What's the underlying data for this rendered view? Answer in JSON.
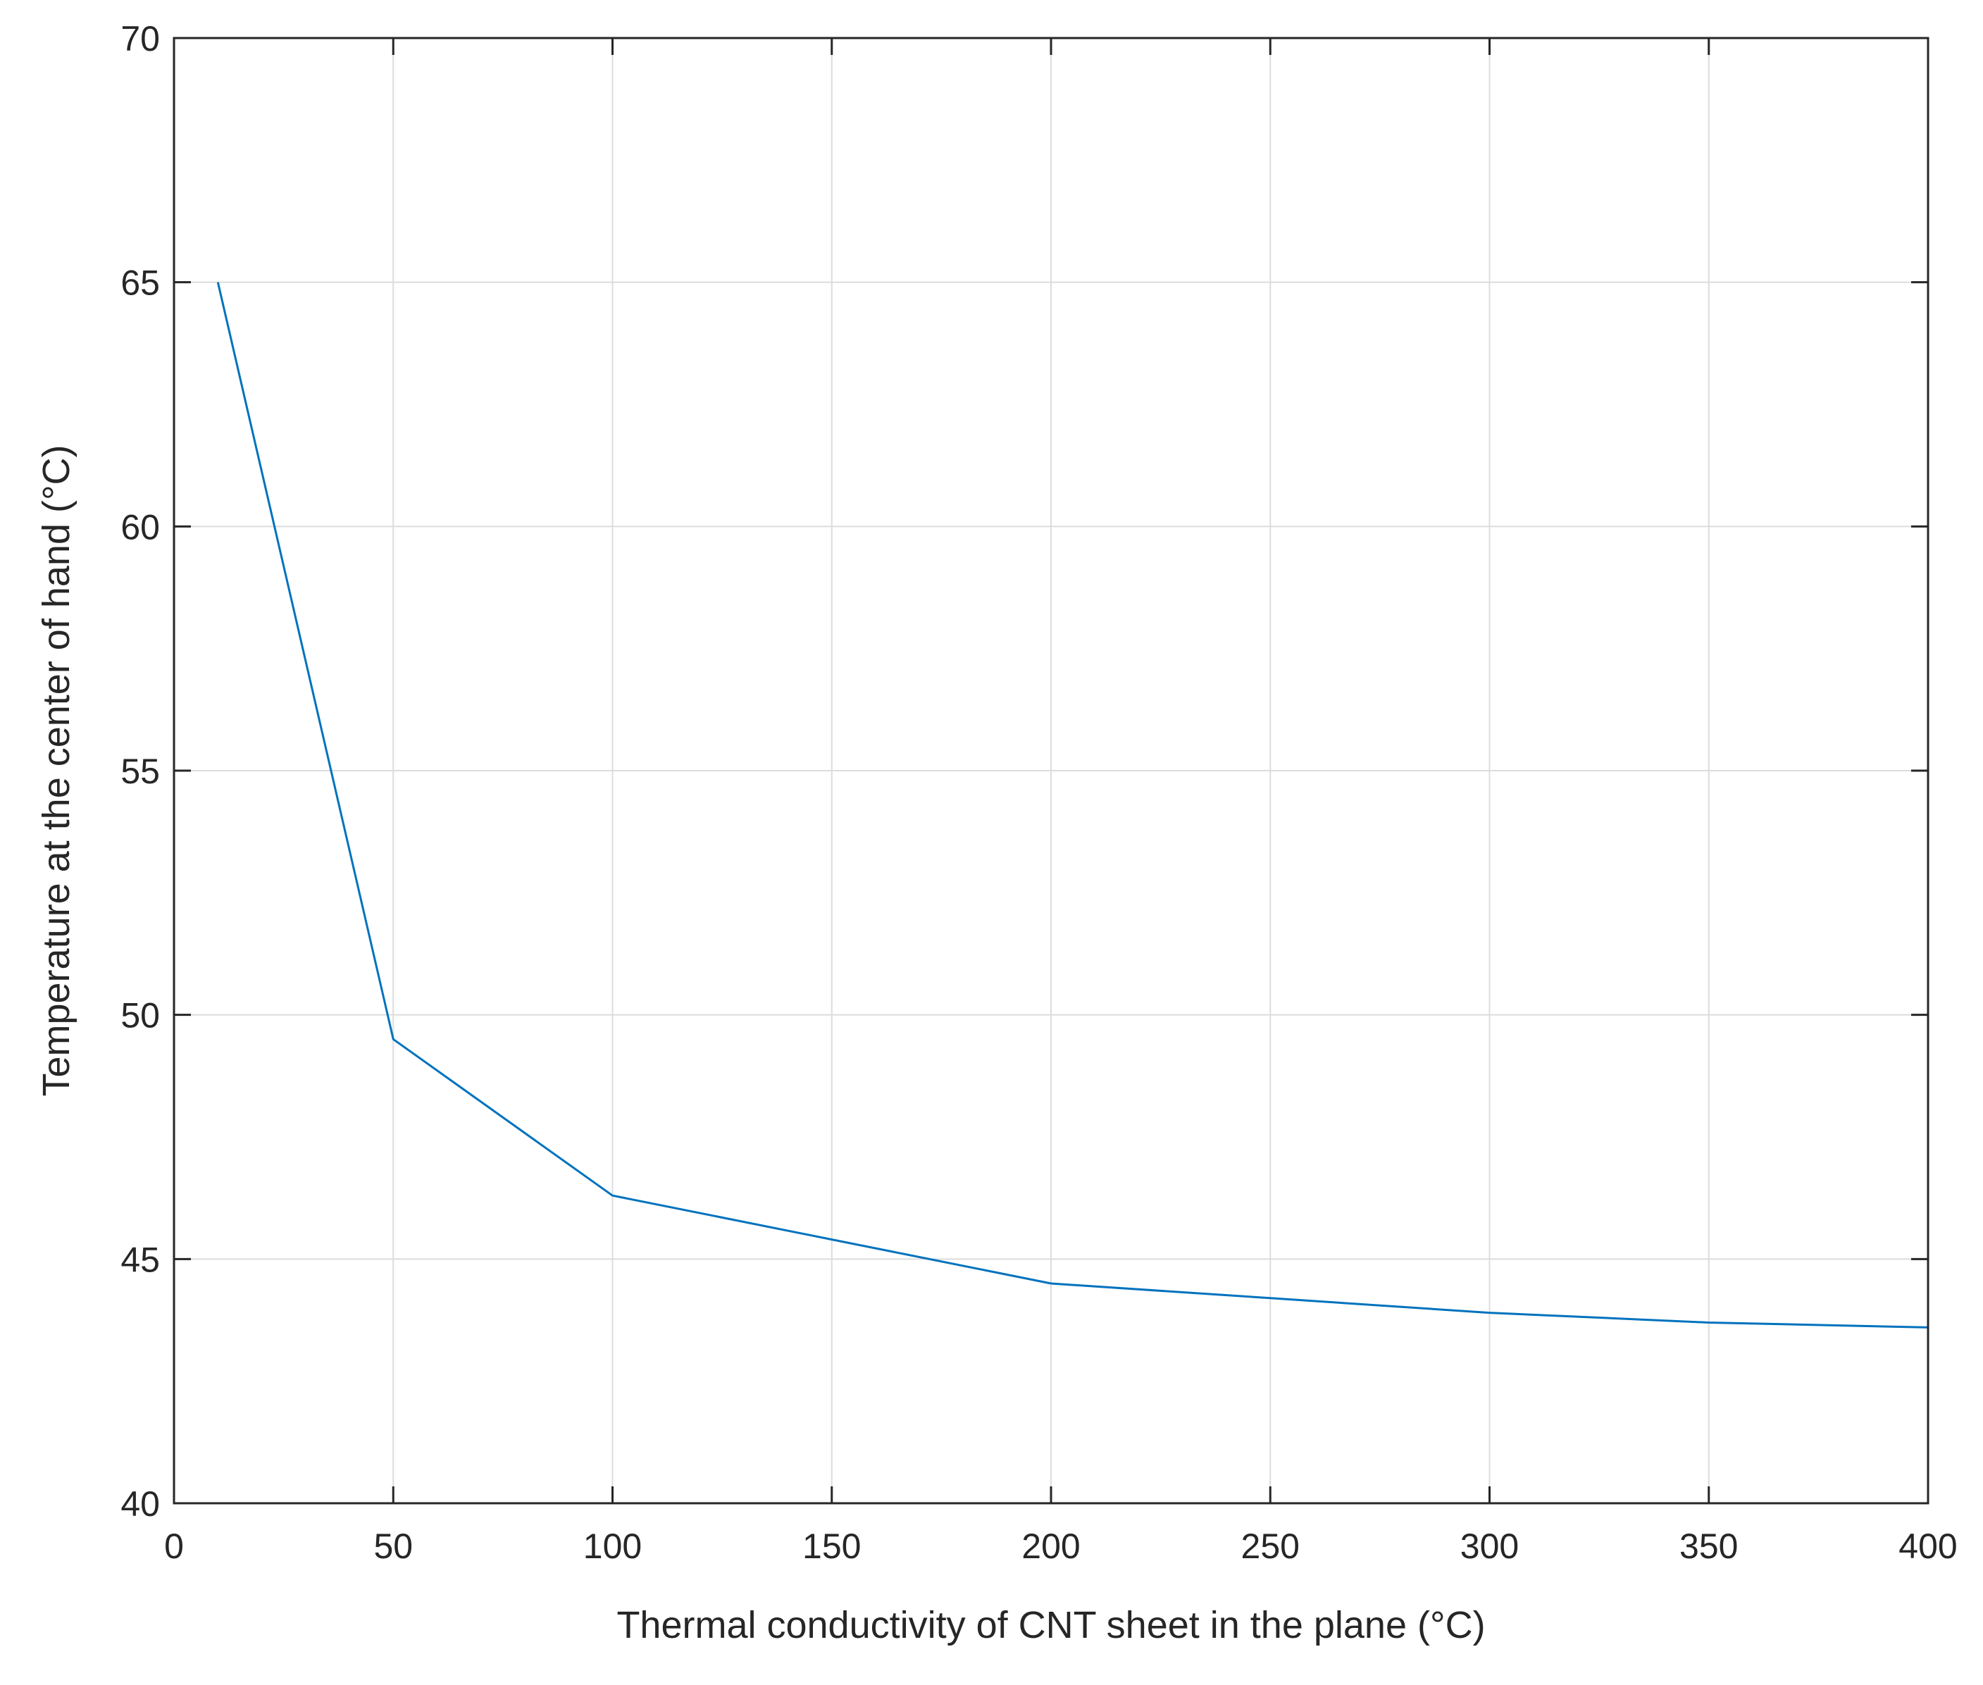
{
  "chart_data": {
    "type": "line",
    "title": "",
    "xlabel": "Thermal conductivity of CNT sheet in the plane (°C)",
    "ylabel": "Temperature at the center of hand (°C)",
    "xlim": [
      0,
      400
    ],
    "ylim": [
      40,
      70
    ],
    "xticks": [
      0,
      50,
      100,
      150,
      200,
      250,
      300,
      350,
      400
    ],
    "yticks": [
      40,
      45,
      50,
      55,
      60,
      65,
      70
    ],
    "xtick_labels": [
      "0",
      "50",
      "100",
      "150",
      "200",
      "250",
      "300",
      "350",
      "400"
    ],
    "ytick_labels": [
      "40",
      "45",
      "50",
      "55",
      "60",
      "65",
      "70"
    ],
    "grid": true,
    "series": [
      {
        "name": "Temperature",
        "color": "#0072BD",
        "x": [
          10,
          50,
          100,
          150,
          200,
          250,
          300,
          350,
          400
        ],
        "y": [
          65.0,
          49.5,
          46.3,
          45.4,
          44.5,
          44.2,
          43.9,
          43.7,
          43.6
        ]
      }
    ]
  }
}
